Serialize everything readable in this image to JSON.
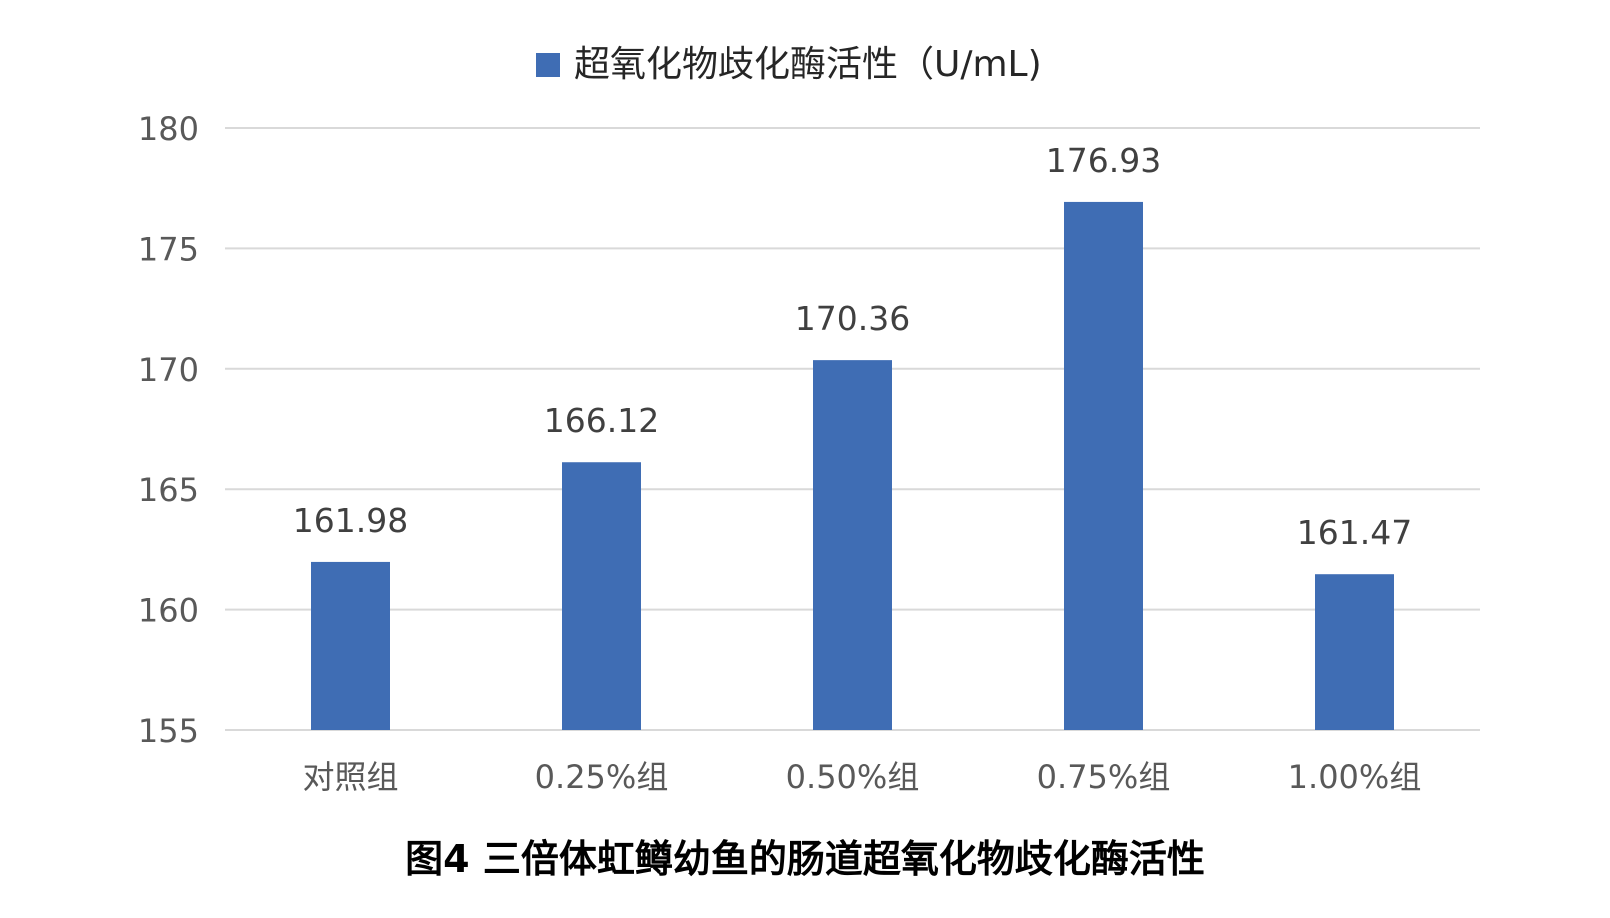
{
  "chart_data": {
    "type": "bar",
    "categories": [
      "对照组",
      "0.25%组",
      "0.50%组",
      "0.75%组",
      "1.00%组"
    ],
    "series": [
      {
        "name": "超氧化物歧化酶活性（U/mL)",
        "values": [
          161.98,
          166.12,
          170.36,
          176.93,
          161.47
        ]
      }
    ],
    "data_labels": [
      "161.98",
      "166.12",
      "170.36",
      "176.93",
      "161.47"
    ],
    "y_ticks": [
      "155",
      "160",
      "165",
      "170",
      "175",
      "180"
    ],
    "ylim": [
      155,
      180
    ],
    "grid": true,
    "legend_position": "top-center",
    "colors": {
      "bar": "#3f6db4",
      "grid": "#d9d9d9",
      "tick": "#595959"
    }
  },
  "caption": "图4 三倍体虹鳟幼鱼的肠道超氧化物歧化酶活性"
}
